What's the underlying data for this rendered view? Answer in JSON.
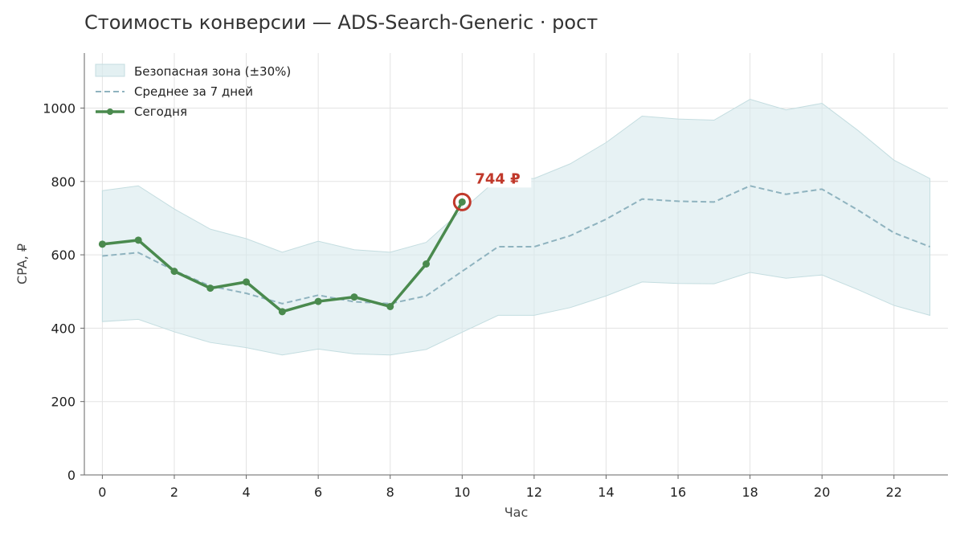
{
  "chart_data": {
    "type": "line",
    "title": "Стоимость конверсии — ADS-Search-Generic · рост",
    "xlabel": "Час",
    "ylabel": "CPA, ₽",
    "xlim": [
      -0.5,
      23.5
    ],
    "ylim": [
      0,
      1150
    ],
    "x_ticks": [
      0,
      2,
      4,
      6,
      8,
      10,
      12,
      14,
      16,
      18,
      20,
      22
    ],
    "y_ticks": [
      0,
      200,
      400,
      600,
      800,
      1000
    ],
    "grid": true,
    "legend_position": "top-left",
    "colors": {
      "band": "#d7e9ec",
      "band_edge": "#c4dde0",
      "average": "#8fb3bf",
      "today": "#4a8a4e",
      "highlight": "#c0392b",
      "grid": "#e3e3e3",
      "axis": "#666666",
      "text": "#222222"
    },
    "legend": {
      "band": "Безопасная зона (±30%)",
      "average": "Среднее за 7 дней",
      "today": "Сегодня"
    },
    "hours": [
      0,
      1,
      2,
      3,
      4,
      5,
      6,
      7,
      8,
      9,
      10,
      11,
      12,
      13,
      14,
      15,
      16,
      17,
      18,
      19,
      20,
      21,
      22,
      23
    ],
    "average": [
      597,
      606,
      557,
      515,
      495,
      467,
      490,
      472,
      467,
      488,
      555,
      622,
      622,
      652,
      697,
      752,
      746,
      744,
      788,
      765,
      779,
      722,
      660,
      622
    ],
    "band_upper": [
      775,
      788,
      725,
      670,
      644,
      607,
      637,
      614,
      607,
      634,
      722,
      808,
      808,
      848,
      906,
      978,
      970,
      967,
      1024,
      995,
      1013,
      939,
      858,
      808
    ],
    "band_lower": [
      418,
      424,
      390,
      361,
      347,
      327,
      343,
      330,
      327,
      342,
      389,
      435,
      435,
      456,
      488,
      526,
      522,
      521,
      552,
      536,
      545,
      505,
      462,
      435
    ],
    "today": [
      {
        "x": 0,
        "y": 629
      },
      {
        "x": 1,
        "y": 640
      },
      {
        "x": 2,
        "y": 555
      },
      {
        "x": 3,
        "y": 509
      },
      {
        "x": 4,
        "y": 526
      },
      {
        "x": 5,
        "y": 445
      },
      {
        "x": 6,
        "y": 473
      },
      {
        "x": 7,
        "y": 485
      },
      {
        "x": 8,
        "y": 459
      },
      {
        "x": 9,
        "y": 575
      },
      {
        "x": 10,
        "y": 744
      }
    ],
    "highlight": {
      "x": 10,
      "y": 744,
      "label": "744 ₽"
    }
  }
}
